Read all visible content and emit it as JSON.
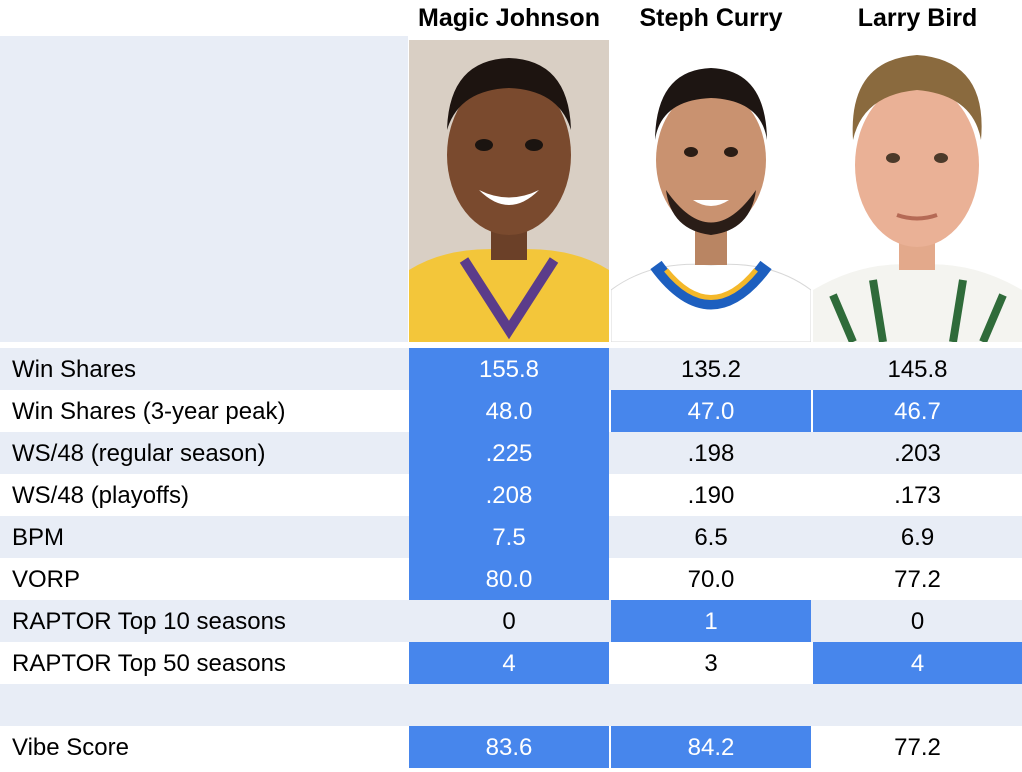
{
  "players": [
    {
      "name": "Magic Johnson",
      "photo": "magic-johnson-photo",
      "jersey_color": "#f3c63a"
    },
    {
      "name": "Steph Curry",
      "photo": "steph-curry-photo",
      "jersey_color": "#ffffff"
    },
    {
      "name": "Larry Bird",
      "photo": "larry-bird-photo",
      "jersey_color": "#ffffff"
    }
  ],
  "colors": {
    "highlight": "#4786ec",
    "stripe": "#e8edf6"
  },
  "rows": [
    {
      "label": "Win Shares",
      "values": [
        "155.8",
        "135.2",
        "145.8"
      ],
      "highlight": [
        true,
        false,
        false
      ]
    },
    {
      "label": "Win Shares (3-year peak)",
      "values": [
        "48.0",
        "47.0",
        "46.7"
      ],
      "highlight": [
        true,
        true,
        true
      ]
    },
    {
      "label": "WS/48 (regular season)",
      "values": [
        ".225",
        ".198",
        ".203"
      ],
      "highlight": [
        true,
        false,
        false
      ]
    },
    {
      "label": "WS/48 (playoffs)",
      "values": [
        ".208",
        ".190",
        ".173"
      ],
      "highlight": [
        true,
        false,
        false
      ]
    },
    {
      "label": "BPM",
      "values": [
        "7.5",
        "6.5",
        "6.9"
      ],
      "highlight": [
        true,
        false,
        false
      ]
    },
    {
      "label": "VORP",
      "values": [
        "80.0",
        "70.0",
        "77.2"
      ],
      "highlight": [
        true,
        false,
        false
      ]
    },
    {
      "label": "RAPTOR Top 10 seasons",
      "values": [
        "0",
        "1",
        "0"
      ],
      "highlight": [
        false,
        true,
        false
      ]
    },
    {
      "label": "RAPTOR Top 50 seasons",
      "values": [
        "4",
        "3",
        "4"
      ],
      "highlight": [
        true,
        false,
        true
      ]
    }
  ],
  "vibe": {
    "label": "Vibe Score",
    "values": [
      "83.6",
      "84.2",
      "77.2"
    ],
    "highlight": [
      true,
      true,
      false
    ]
  }
}
